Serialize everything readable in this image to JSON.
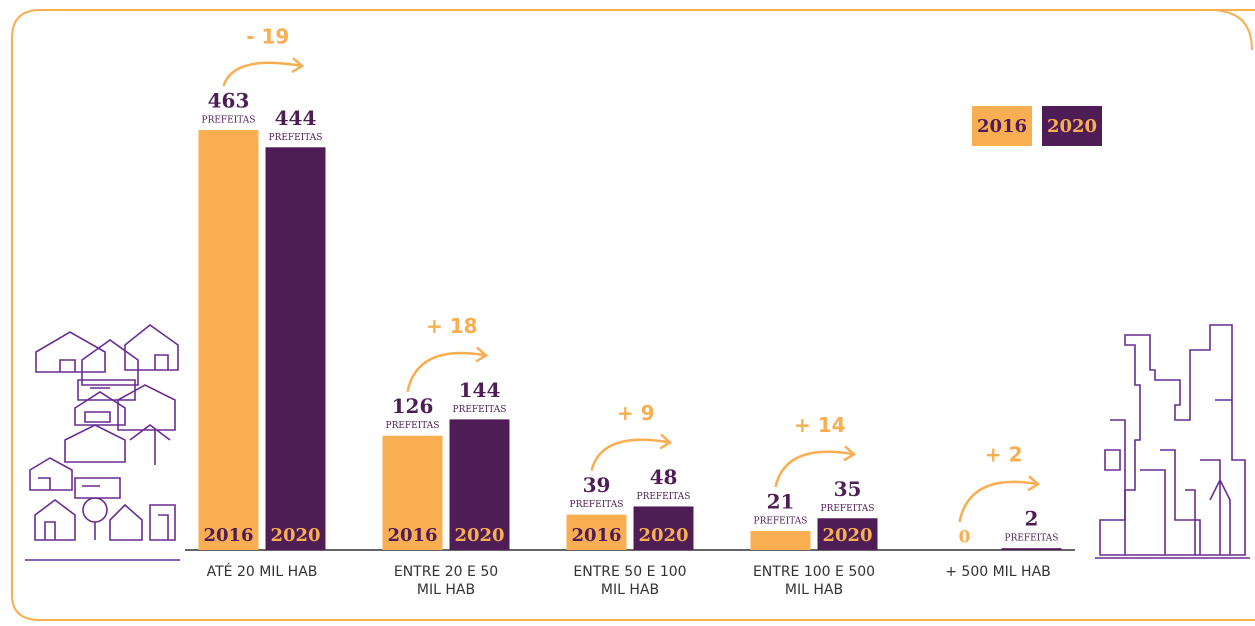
{
  "chart_data": {
    "type": "bar",
    "categories": [
      "ATÉ 20 MIL HAB",
      "ENTRE 20 E 50 MIL HAB",
      "ENTRE 50 E 100 MIL HAB",
      "ENTRE 100 E 500 MIL HAB",
      "+ 500 MIL HAB"
    ],
    "series": [
      {
        "name": "2016",
        "color": "#f9ae52",
        "values": [
          463,
          126,
          39,
          21,
          0
        ]
      },
      {
        "name": "2020",
        "color": "#4f1d56",
        "values": [
          444,
          144,
          48,
          35,
          2
        ]
      }
    ],
    "unit_label": "PREFEITAS",
    "annotations": [
      "- 19",
      "+ 18",
      "+ 9",
      "+ 14",
      "+ 2"
    ],
    "legend": "top-right"
  }
}
